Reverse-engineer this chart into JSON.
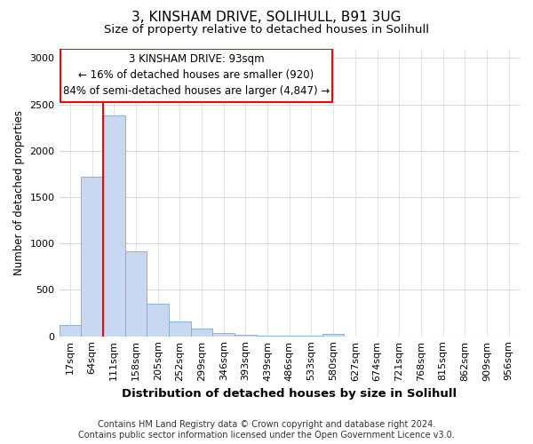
{
  "title1": "3, KINSHAM DRIVE, SOLIHULL, B91 3UG",
  "title2": "Size of property relative to detached houses in Solihull",
  "xlabel": "Distribution of detached houses by size in Solihull",
  "ylabel": "Number of detached properties",
  "footnote": "Contains HM Land Registry data © Crown copyright and database right 2024.\nContains public sector information licensed under the Open Government Licence v3.0.",
  "bin_labels": [
    "17sqm",
    "64sqm",
    "111sqm",
    "158sqm",
    "205sqm",
    "252sqm",
    "299sqm",
    "346sqm",
    "393sqm",
    "439sqm",
    "486sqm",
    "533sqm",
    "580sqm",
    "627sqm",
    "674sqm",
    "721sqm",
    "768sqm",
    "815sqm",
    "862sqm",
    "909sqm",
    "956sqm"
  ],
  "bar_heights": [
    120,
    1720,
    2380,
    920,
    350,
    155,
    80,
    40,
    20,
    8,
    5,
    3,
    30,
    0,
    0,
    0,
    0,
    0,
    0,
    0,
    0
  ],
  "bar_color": "#c8d8f0",
  "bar_edgecolor": "#7aaad0",
  "red_line_x": 2.0,
  "annotation_text": "3 KINSHAM DRIVE: 93sqm\n← 16% of detached houses are smaller (920)\n84% of semi-detached houses are larger (4,847) →",
  "annotation_box_color": "white",
  "annotation_box_edgecolor": "red",
  "red_line_color": "red",
  "ylim": [
    0,
    3100
  ],
  "yticks": [
    0,
    500,
    1000,
    1500,
    2000,
    2500,
    3000
  ],
  "title1_fontsize": 11,
  "title2_fontsize": 9.5,
  "xlabel_fontsize": 9.5,
  "ylabel_fontsize": 8.5,
  "tick_fontsize": 8,
  "annotation_fontsize": 8.5,
  "footnote_fontsize": 7,
  "background_color": "#ffffff",
  "grid_color": "#d0d8e8"
}
